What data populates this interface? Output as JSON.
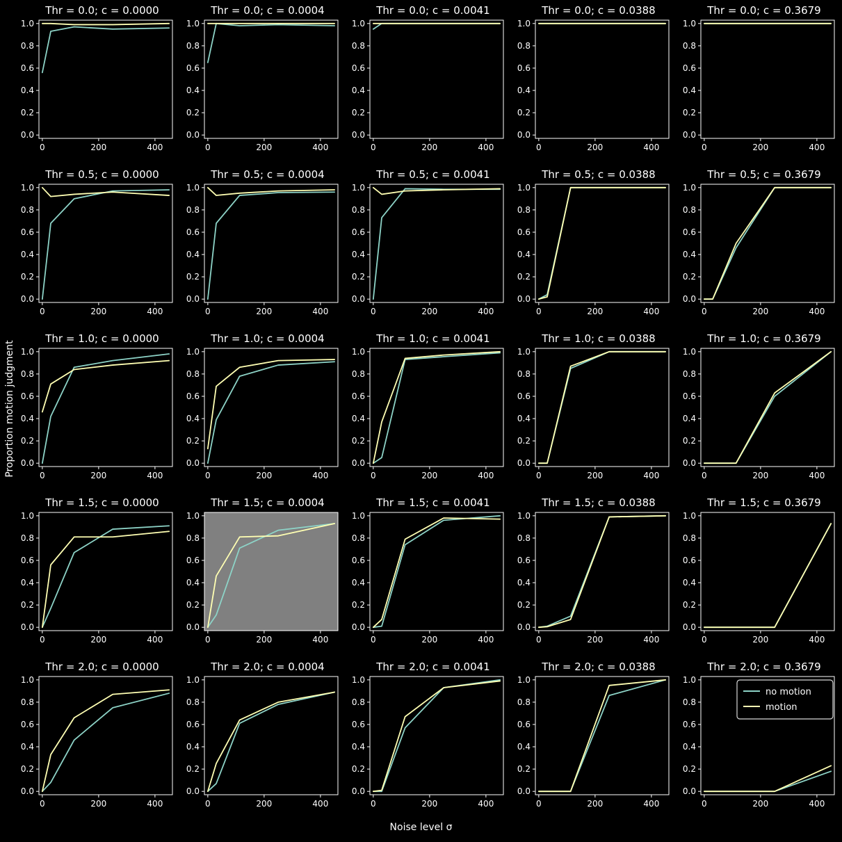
{
  "figure": {
    "xlabel": "Noise level σ",
    "ylabel": "Proportion motion judgment",
    "background": "#000000",
    "highlight_background": "#808080",
    "text_color": "#ffffff",
    "axis_color": "#ffffff"
  },
  "legend": {
    "position": "upper-right of last subplot",
    "entries": [
      {
        "label": "no motion",
        "color": "#8dd3c7"
      },
      {
        "label": "motion",
        "color": "#ffffb3"
      }
    ]
  },
  "chart_data": {
    "type": "line",
    "x_label": "Noise level σ",
    "y_label": "Proportion motion judgment",
    "x_ticks": [
      0,
      200,
      400
    ],
    "y_ticks": [
      "0.0",
      "0.2",
      "0.4",
      "0.6",
      "0.8",
      "1.0"
    ],
    "xlim": [
      -12,
      462
    ],
    "ylim": [
      -0.03,
      1.03
    ],
    "x": [
      0,
      30,
      113,
      250,
      450
    ],
    "series_names": [
      "no motion",
      "motion"
    ],
    "series_colors": [
      "#8dd3c7",
      "#ffffb3"
    ],
    "grid_on": false,
    "rows_param": "Thr",
    "cols_param": "c",
    "grid": [
      {
        "title": "Thr = 0.0; c = 0.0000",
        "thr": "0.0",
        "c": "0.0000",
        "highlighted": false,
        "no_motion": [
          0.56,
          0.93,
          0.97,
          0.95,
          0.96
        ],
        "motion": [
          1.0,
          1.0,
          0.99,
          0.99,
          1.0
        ]
      },
      {
        "title": "Thr = 0.0; c = 0.0004",
        "thr": "0.0",
        "c": "0.0004",
        "highlighted": false,
        "no_motion": [
          0.65,
          1.0,
          0.98,
          0.99,
          0.98
        ],
        "motion": [
          1.0,
          1.0,
          1.0,
          1.0,
          1.0
        ]
      },
      {
        "title": "Thr = 0.0; c = 0.0041",
        "thr": "0.0",
        "c": "0.0041",
        "highlighted": false,
        "no_motion": [
          0.95,
          1.0,
          1.0,
          1.0,
          1.0
        ],
        "motion": [
          1.0,
          1.0,
          1.0,
          1.0,
          1.0
        ]
      },
      {
        "title": "Thr = 0.0; c = 0.0388",
        "thr": "0.0",
        "c": "0.0388",
        "highlighted": false,
        "no_motion": [
          1.0,
          1.0,
          1.0,
          1.0,
          1.0
        ],
        "motion": [
          1.0,
          1.0,
          1.0,
          1.0,
          1.0
        ]
      },
      {
        "title": "Thr = 0.0; c = 0.3679",
        "thr": "0.0",
        "c": "0.3679",
        "highlighted": false,
        "no_motion": [
          1.0,
          1.0,
          1.0,
          1.0,
          1.0
        ],
        "motion": [
          1.0,
          1.0,
          1.0,
          1.0,
          1.0
        ]
      },
      {
        "title": "Thr = 0.5; c = 0.0000",
        "thr": "0.5",
        "c": "0.0000",
        "highlighted": false,
        "no_motion": [
          0.0,
          0.68,
          0.9,
          0.97,
          0.98
        ],
        "motion": [
          1.0,
          0.92,
          0.94,
          0.96,
          0.93
        ]
      },
      {
        "title": "Thr = 0.5; c = 0.0004",
        "thr": "0.5",
        "c": "0.0004",
        "highlighted": false,
        "no_motion": [
          0.0,
          0.68,
          0.93,
          0.955,
          0.96
        ],
        "motion": [
          1.0,
          0.93,
          0.95,
          0.97,
          0.98
        ]
      },
      {
        "title": "Thr = 0.5; c = 0.0041",
        "thr": "0.5",
        "c": "0.0041",
        "highlighted": false,
        "no_motion": [
          0.0,
          0.73,
          0.99,
          0.985,
          0.985
        ],
        "motion": [
          1.0,
          0.94,
          0.97,
          0.98,
          0.99
        ]
      },
      {
        "title": "Thr = 0.5; c = 0.0388",
        "thr": "0.5",
        "c": "0.0388",
        "highlighted": false,
        "no_motion": [
          0.0,
          0.04,
          1.0,
          1.0,
          1.0
        ],
        "motion": [
          0.0,
          0.02,
          1.0,
          1.0,
          1.0
        ]
      },
      {
        "title": "Thr = 0.5; c = 0.3679",
        "thr": "0.5",
        "c": "0.3679",
        "highlighted": false,
        "no_motion": [
          0.0,
          0.0,
          0.46,
          1.0,
          1.0
        ],
        "motion": [
          0.0,
          0.0,
          0.5,
          1.0,
          1.0
        ]
      },
      {
        "title": "Thr = 1.0; c = 0.0000",
        "thr": "1.0",
        "c": "0.0000",
        "highlighted": false,
        "no_motion": [
          0.0,
          0.42,
          0.86,
          0.92,
          0.98
        ],
        "motion": [
          0.46,
          0.71,
          0.84,
          0.88,
          0.92
        ]
      },
      {
        "title": "Thr = 1.0; c = 0.0004",
        "thr": "1.0",
        "c": "0.0004",
        "highlighted": false,
        "no_motion": [
          0.0,
          0.39,
          0.78,
          0.88,
          0.91
        ],
        "motion": [
          0.13,
          0.69,
          0.86,
          0.92,
          0.93
        ]
      },
      {
        "title": "Thr = 1.0; c = 0.0041",
        "thr": "1.0",
        "c": "0.0041",
        "highlighted": false,
        "no_motion": [
          0.0,
          0.05,
          0.93,
          0.955,
          0.99
        ],
        "motion": [
          0.0,
          0.37,
          0.94,
          0.97,
          1.0
        ]
      },
      {
        "title": "Thr = 1.0; c = 0.0388",
        "thr": "1.0",
        "c": "0.0388",
        "highlighted": false,
        "no_motion": [
          0.0,
          0.0,
          0.85,
          1.0,
          1.0
        ],
        "motion": [
          0.0,
          0.0,
          0.87,
          1.0,
          1.0
        ]
      },
      {
        "title": "Thr = 1.0; c = 0.3679",
        "thr": "1.0",
        "c": "0.3679",
        "highlighted": false,
        "no_motion": [
          0.0,
          0.0,
          0.0,
          0.6,
          1.0
        ],
        "motion": [
          0.0,
          0.0,
          0.0,
          0.63,
          1.0
        ]
      },
      {
        "title": "Thr = 1.5; c = 0.0000",
        "thr": "1.5",
        "c": "0.0000",
        "highlighted": false,
        "no_motion": [
          0.0,
          0.17,
          0.67,
          0.88,
          0.91
        ],
        "motion": [
          0.0,
          0.56,
          0.81,
          0.81,
          0.86
        ]
      },
      {
        "title": "Thr = 1.5; c = 0.0004",
        "thr": "1.5",
        "c": "0.0004",
        "highlighted": true,
        "no_motion": [
          0.0,
          0.11,
          0.71,
          0.87,
          0.93
        ],
        "motion": [
          0.0,
          0.46,
          0.81,
          0.82,
          0.93
        ]
      },
      {
        "title": "Thr = 1.5; c = 0.0041",
        "thr": "1.5",
        "c": "0.0041",
        "highlighted": false,
        "no_motion": [
          0.0,
          0.01,
          0.74,
          0.96,
          1.0
        ],
        "motion": [
          0.0,
          0.07,
          0.79,
          0.98,
          0.97
        ]
      },
      {
        "title": "Thr = 1.5; c = 0.0388",
        "thr": "1.5",
        "c": "0.0388",
        "highlighted": false,
        "no_motion": [
          0.0,
          0.01,
          0.1,
          0.99,
          1.0
        ],
        "motion": [
          0.0,
          0.005,
          0.07,
          0.99,
          1.0
        ]
      },
      {
        "title": "Thr = 1.5; c = 0.3679",
        "thr": "1.5",
        "c": "0.3679",
        "highlighted": false,
        "no_motion": [
          0.0,
          0.0,
          0.0,
          0.0,
          0.93
        ],
        "motion": [
          0.0,
          0.0,
          0.0,
          0.0,
          0.93
        ]
      },
      {
        "title": "Thr = 2.0; c = 0.0000",
        "thr": "2.0",
        "c": "0.0000",
        "highlighted": false,
        "no_motion": [
          0.0,
          0.08,
          0.46,
          0.75,
          0.88
        ],
        "motion": [
          0.0,
          0.33,
          0.66,
          0.87,
          0.91
        ]
      },
      {
        "title": "Thr = 2.0; c = 0.0004",
        "thr": "2.0",
        "c": "0.0004",
        "highlighted": false,
        "no_motion": [
          0.0,
          0.07,
          0.61,
          0.78,
          0.89
        ],
        "motion": [
          0.0,
          0.25,
          0.64,
          0.8,
          0.89
        ]
      },
      {
        "title": "Thr = 2.0; c = 0.0041",
        "thr": "2.0",
        "c": "0.0041",
        "highlighted": false,
        "no_motion": [
          0.0,
          0.0,
          0.57,
          0.93,
          1.0
        ],
        "motion": [
          0.0,
          0.01,
          0.67,
          0.93,
          0.99
        ]
      },
      {
        "title": "Thr = 2.0; c = 0.0388",
        "thr": "2.0",
        "c": "0.0388",
        "highlighted": false,
        "no_motion": [
          0.0,
          0.0,
          0.0,
          0.86,
          1.0
        ],
        "motion": [
          0.0,
          0.0,
          0.0,
          0.95,
          1.0
        ]
      },
      {
        "title": "Thr = 2.0; c = 0.3679",
        "thr": "2.0",
        "c": "0.3679",
        "highlighted": false,
        "no_motion": [
          0.0,
          0.0,
          0.0,
          0.0,
          0.18
        ],
        "motion": [
          0.0,
          0.0,
          0.0,
          0.0,
          0.23
        ]
      }
    ]
  }
}
